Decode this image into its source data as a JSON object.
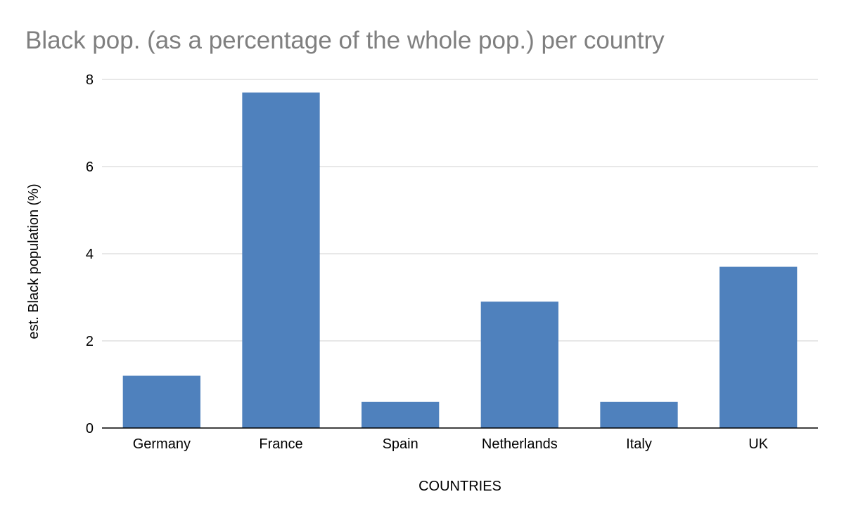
{
  "chart_data": {
    "type": "bar",
    "title": "Black pop. (as a percentage of the whole pop.) per country",
    "xlabel": "COUNTRIES",
    "ylabel": "est. Black population (%)",
    "categories": [
      "Germany",
      "France",
      "Spain",
      "Netherlands",
      "Italy",
      "UK"
    ],
    "values": [
      1.2,
      7.7,
      0.6,
      2.9,
      0.6,
      3.7
    ],
    "ylim": [
      0,
      8
    ],
    "yticks": [
      "0",
      "2",
      "4",
      "6",
      "8"
    ],
    "grid": true,
    "legend": "none",
    "colors": {
      "bar": "#4f81bd",
      "grid": "#d9d9d9",
      "axis": "#000000",
      "title": "#7f7f7f",
      "text": "#000000"
    }
  }
}
